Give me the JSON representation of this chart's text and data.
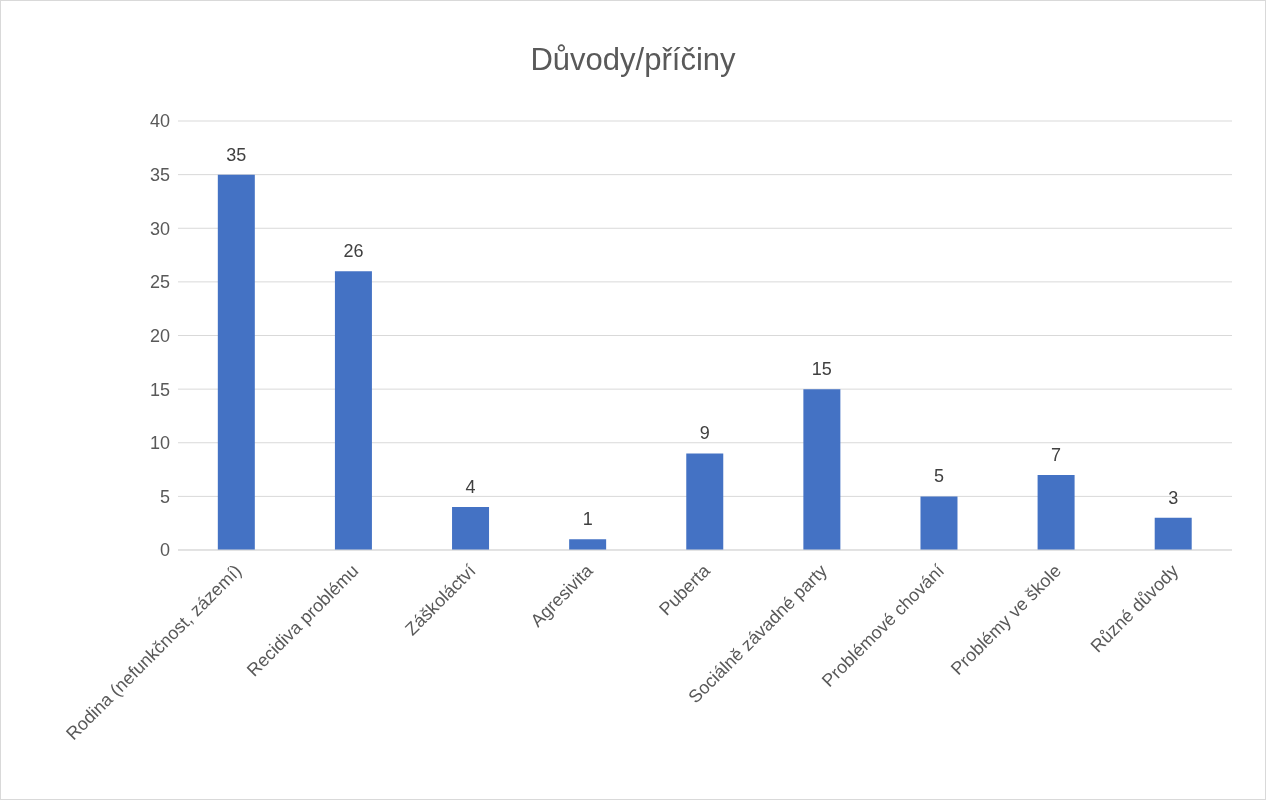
{
  "chart_data": {
    "type": "bar",
    "title": "Důvody/příčiny",
    "categories": [
      "Rodina (nefunkčnost, zázemí)",
      "Recidiva problému",
      "Záškoláctví",
      "Agresivita",
      "Puberta",
      "Sociálně závadné party",
      "Problémové chování",
      "Problémy ve škole",
      "Různé důvody"
    ],
    "values": [
      35,
      26,
      4,
      1,
      9,
      15,
      5,
      7,
      3
    ],
    "color": "#4472c4",
    "ylim": [
      0,
      40
    ],
    "yticks": [
      0,
      5,
      10,
      15,
      20,
      25,
      30,
      35,
      40
    ],
    "grid": "y",
    "data_labels": true
  }
}
